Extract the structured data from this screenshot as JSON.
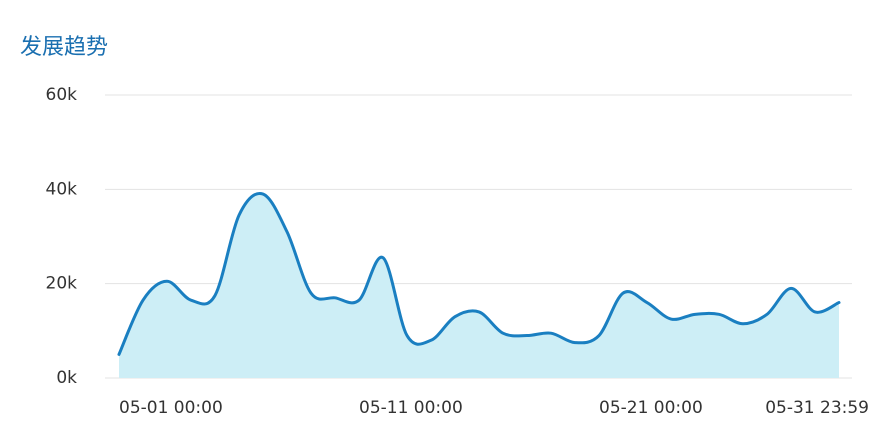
{
  "chart_data": {
    "type": "area",
    "title": "发展趋势",
    "x": [
      "05-01 00:00",
      null,
      null,
      null,
      null,
      null,
      null,
      null,
      null,
      null,
      "05-11 00:00",
      null,
      null,
      null,
      null,
      null,
      null,
      null,
      null,
      null,
      "05-21 00:00",
      null,
      null,
      null,
      null,
      null,
      null,
      null,
      null,
      null,
      "05-31 23:59"
    ],
    "series": [
      {
        "name": null,
        "color": "#1a7fc1",
        "fill": "#cdeef6",
        "values": [
          5000,
          16500,
          20500,
          16500,
          17500,
          34500,
          39000,
          31000,
          18000,
          17000,
          16500,
          25500,
          9000,
          8000,
          13000,
          14000,
          9500,
          9000,
          9500,
          7500,
          9000,
          18000,
          16000,
          12500,
          13500,
          13500,
          11500,
          13500,
          19000,
          14000,
          16000
        ]
      }
    ],
    "ylim": [
      0,
      60000
    ],
    "yticks": [
      {
        "value": 0,
        "label": "0k"
      },
      {
        "value": 20000,
        "label": "20k"
      },
      {
        "value": 40000,
        "label": "40k"
      },
      {
        "value": 60000,
        "label": "60k"
      }
    ],
    "grid": true
  }
}
